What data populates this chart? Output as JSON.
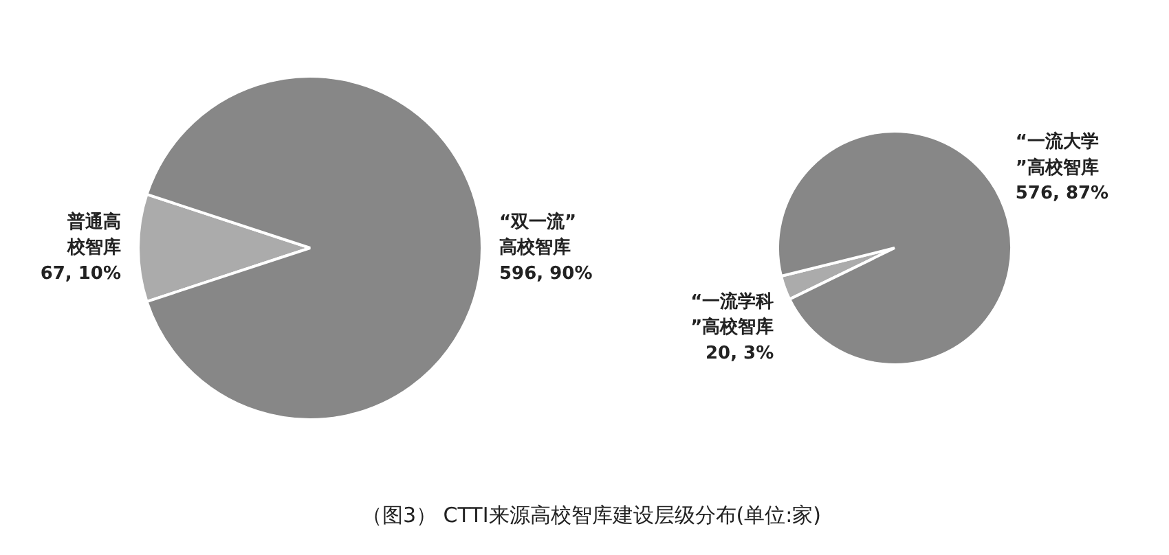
{
  "chart_data": [
    {
      "type": "pie",
      "title": "（图3） CTTI来源高校智库建设层级分布(单位:家)",
      "categories": [
        "“双一流”高校智库",
        "普通高校智库"
      ],
      "values": [
        596,
        67
      ],
      "value_labels": [
        "596, 90%",
        "67, 10%"
      ],
      "colors": [
        "#878787",
        "#ababab"
      ]
    },
    {
      "type": "pie",
      "categories": [
        "“一流大学”高校智库",
        "“一流学科”高校智库"
      ],
      "values": [
        576,
        20
      ],
      "value_labels": [
        "576, 87%",
        "20, 3%"
      ],
      "colors": [
        "#878787",
        "#ababab"
      ]
    }
  ]
}
